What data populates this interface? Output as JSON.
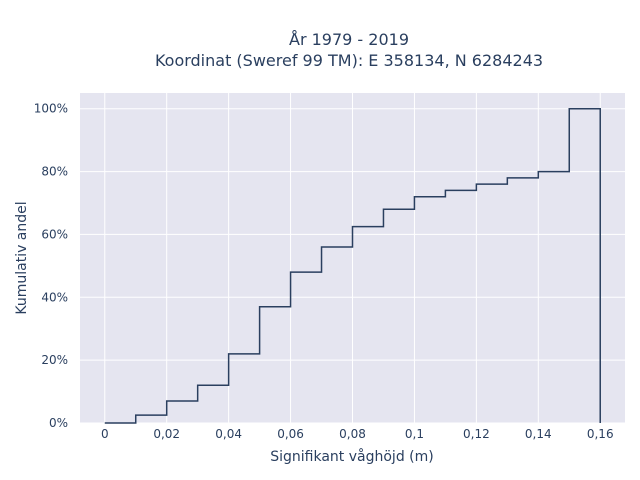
{
  "chart_data": {
    "type": "line",
    "line_shape": "step",
    "title_lines": [
      "År 1979 - 2019",
      "Koordinat (Sweref 99 TM): E 358134, N 6284243"
    ],
    "xlabel": "Signifikant våghöjd (m)",
    "ylabel": "Kumulativ andel",
    "xlim": [
      -0.008,
      0.168
    ],
    "ylim": [
      0,
      1.05
    ],
    "x_ticks": [
      0,
      0.02,
      0.04,
      0.06,
      0.08,
      0.1,
      0.12,
      0.14,
      0.16
    ],
    "x_tick_labels": [
      "0",
      "0,02",
      "0,04",
      "0,06",
      "0,08",
      "0,1",
      "0,12",
      "0,14",
      "0,16"
    ],
    "y_ticks": [
      0,
      0.2,
      0.4,
      0.6,
      0.8,
      1.0
    ],
    "y_tick_labels": [
      "0%",
      "20%",
      "40%",
      "60%",
      "80%",
      "100%"
    ],
    "grid": true,
    "background": "#e5e5f0",
    "line_color": "#2a3f5f",
    "series": [
      {
        "x": [
          0,
          0.01,
          0.02,
          0.03,
          0.04,
          0.05,
          0.06,
          0.07,
          0.08,
          0.09,
          0.1,
          0.11,
          0.12,
          0.13,
          0.14,
          0.15,
          0.16
        ],
        "y": [
          0,
          0.025,
          0.07,
          0.12,
          0.22,
          0.37,
          0.48,
          0.56,
          0.625,
          0.68,
          0.72,
          0.74,
          0.76,
          0.78,
          0.8,
          1.0,
          0
        ]
      }
    ]
  }
}
